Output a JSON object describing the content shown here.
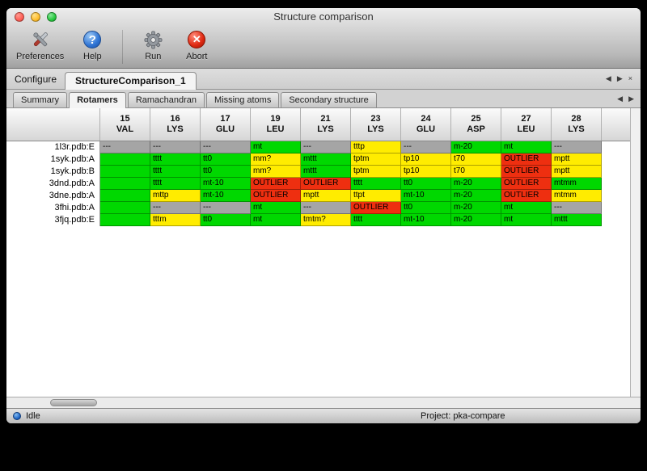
{
  "window": {
    "title": "Structure comparison"
  },
  "toolbar": {
    "items": [
      {
        "label": "Preferences",
        "icon": "tools-icon"
      },
      {
        "label": "Help",
        "icon": "help-icon",
        "glyph": "?"
      },
      {
        "label": "Run",
        "icon": "gear-icon"
      },
      {
        "label": "Abort",
        "icon": "abort-icon",
        "glyph": "✕"
      }
    ]
  },
  "configure": {
    "label": "Configure",
    "tab": "StructureComparison_1",
    "nav": {
      "prev": "◀",
      "next": "▶",
      "close": "×"
    }
  },
  "tabs": {
    "items": [
      "Summary",
      "Rotamers",
      "Ramachandran",
      "Missing atoms",
      "Secondary structure"
    ],
    "selected": "Rotamers",
    "nav": {
      "prev": "◀",
      "next": "▶"
    }
  },
  "table": {
    "columns": [
      {
        "num": "15",
        "res": "VAL"
      },
      {
        "num": "16",
        "res": "LYS"
      },
      {
        "num": "17",
        "res": "GLU"
      },
      {
        "num": "19",
        "res": "LEU"
      },
      {
        "num": "21",
        "res": "LYS"
      },
      {
        "num": "23",
        "res": "LYS"
      },
      {
        "num": "24",
        "res": "GLU"
      },
      {
        "num": "25",
        "res": "ASP"
      },
      {
        "num": "27",
        "res": "LEU"
      },
      {
        "num": "28",
        "res": "LYS"
      }
    ],
    "rows": [
      {
        "name": "1l3r.pdb:E",
        "cells": [
          {
            "t": "---",
            "s": "none"
          },
          {
            "t": "---",
            "s": "none"
          },
          {
            "t": "---",
            "s": "none"
          },
          {
            "t": "mt",
            "s": "good"
          },
          {
            "t": "---",
            "s": "none"
          },
          {
            "t": "tttp",
            "s": "warn"
          },
          {
            "t": "---",
            "s": "none"
          },
          {
            "t": "m-20",
            "s": "good"
          },
          {
            "t": "mt",
            "s": "good"
          },
          {
            "t": "---",
            "s": "none"
          }
        ]
      },
      {
        "name": "1syk.pdb:A",
        "cells": [
          {
            "t": "",
            "s": "good"
          },
          {
            "t": "tttt",
            "s": "good"
          },
          {
            "t": "tt0",
            "s": "good"
          },
          {
            "t": "mm?",
            "s": "warn"
          },
          {
            "t": "mttt",
            "s": "good"
          },
          {
            "t": "tptm",
            "s": "warn"
          },
          {
            "t": "tp10",
            "s": "warn"
          },
          {
            "t": "t70",
            "s": "warn"
          },
          {
            "t": "OUTLIER",
            "s": "outlier"
          },
          {
            "t": "mptt",
            "s": "warn"
          }
        ]
      },
      {
        "name": "1syk.pdb:B",
        "cells": [
          {
            "t": "",
            "s": "good"
          },
          {
            "t": "tttt",
            "s": "good"
          },
          {
            "t": "tt0",
            "s": "good"
          },
          {
            "t": "mm?",
            "s": "warn"
          },
          {
            "t": "mttt",
            "s": "good"
          },
          {
            "t": "tptm",
            "s": "warn"
          },
          {
            "t": "tp10",
            "s": "warn"
          },
          {
            "t": "t70",
            "s": "warn"
          },
          {
            "t": "OUTLIER",
            "s": "outlier"
          },
          {
            "t": "mptt",
            "s": "warn"
          }
        ]
      },
      {
        "name": "3dnd.pdb:A",
        "cells": [
          {
            "t": "",
            "s": "good"
          },
          {
            "t": "tttt",
            "s": "good"
          },
          {
            "t": "mt-10",
            "s": "good"
          },
          {
            "t": "OUTLIER",
            "s": "outlier"
          },
          {
            "t": "OUTLIER",
            "s": "outlier"
          },
          {
            "t": "tttt",
            "s": "good"
          },
          {
            "t": "tt0",
            "s": "good"
          },
          {
            "t": "m-20",
            "s": "good"
          },
          {
            "t": "OUTLIER",
            "s": "outlier"
          },
          {
            "t": "mtmm",
            "s": "good"
          }
        ]
      },
      {
        "name": "3dne.pdb:A",
        "cells": [
          {
            "t": "",
            "s": "good"
          },
          {
            "t": "mttp",
            "s": "warn"
          },
          {
            "t": "mt-10",
            "s": "good"
          },
          {
            "t": "OUTLIER",
            "s": "outlier"
          },
          {
            "t": "mptt",
            "s": "warn"
          },
          {
            "t": "ttpt",
            "s": "warn"
          },
          {
            "t": "mt-10",
            "s": "good"
          },
          {
            "t": "m-20",
            "s": "good"
          },
          {
            "t": "OUTLIER",
            "s": "outlier"
          },
          {
            "t": "mtmm",
            "s": "warn"
          }
        ]
      },
      {
        "name": "3fhi.pdb:A",
        "cells": [
          {
            "t": "",
            "s": "good"
          },
          {
            "t": "---",
            "s": "none"
          },
          {
            "t": "---",
            "s": "none"
          },
          {
            "t": "mt",
            "s": "good"
          },
          {
            "t": "---",
            "s": "none"
          },
          {
            "t": "OUTLIER",
            "s": "outlier"
          },
          {
            "t": "tt0",
            "s": "good"
          },
          {
            "t": "m-20",
            "s": "good"
          },
          {
            "t": "mt",
            "s": "good"
          },
          {
            "t": "---",
            "s": "none"
          }
        ]
      },
      {
        "name": "3fjq.pdb:E",
        "cells": [
          {
            "t": "",
            "s": "good"
          },
          {
            "t": "tttm",
            "s": "warn"
          },
          {
            "t": "tt0",
            "s": "good"
          },
          {
            "t": "mt",
            "s": "good"
          },
          {
            "t": "tmtm?",
            "s": "warn"
          },
          {
            "t": "tttt",
            "s": "good"
          },
          {
            "t": "mt-10",
            "s": "good"
          },
          {
            "t": "m-20",
            "s": "good"
          },
          {
            "t": "mt",
            "s": "good"
          },
          {
            "t": "mttt",
            "s": "good"
          }
        ]
      }
    ]
  },
  "statusbar": {
    "status": "Idle",
    "project": "Project: pka-compare"
  },
  "colors": {
    "good": "#00d800",
    "warn": "#ffec00",
    "outlier": "#ee2f10",
    "none": "#a5a5a5"
  }
}
